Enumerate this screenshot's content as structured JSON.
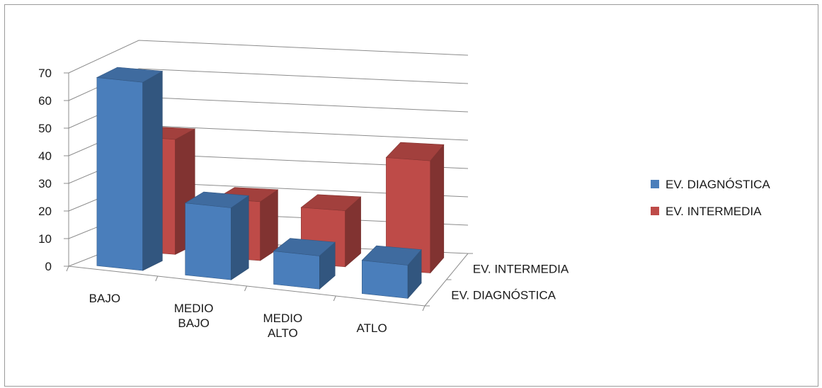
{
  "chart_data": {
    "type": "bar",
    "title": "",
    "xlabel": "",
    "ylabel": "",
    "categories": [
      [
        "BAJO"
      ],
      [
        "MEDIO",
        "BAJO"
      ],
      [
        "MEDIO",
        "ALTO"
      ],
      [
        "ATLO"
      ]
    ],
    "y_ticks": [
      0,
      10,
      20,
      30,
      40,
      50,
      60,
      70
    ],
    "ylim": [
      0,
      70
    ],
    "depth_categories": [
      "EV. DIAGNÓSTICA",
      "EV. INTERMEDIA"
    ],
    "series": [
      {
        "name": "EV. DIAGNÓSTICA",
        "values": [
          68,
          26,
          12,
          12
        ],
        "color": "#4A7EBB"
      },
      {
        "name": "EV. INTERMEDIA",
        "values": [
          41,
          21,
          20,
          40
        ],
        "color": "#BE4B48"
      }
    ],
    "legend_position": "right",
    "grid": true
  }
}
